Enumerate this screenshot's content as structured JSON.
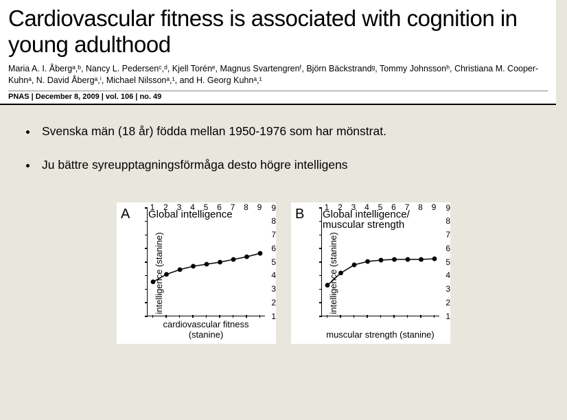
{
  "header": {
    "title": "Cardiovascular fitness is associated with cognition in young adulthood",
    "authors_html": "Maria A. I. Åbergᵃ,ᵇ, Nancy L. Pedersenᶜ,ᵈ, Kjell Torénᵉ, Magnus Svartengrenᶠ, Björn Bäckstrandᵍ, Tommy Johnssonʰ, Christiana M. Cooper-Kuhnᵃ, N. David Åbergᵃ,ⁱ, Michael Nilssonᵃ,¹, and H. Georg Kuhnᵃ,¹",
    "meta": "PNAS  |  December 8, 2009  |  vol. 106  |  no. 49"
  },
  "bullets": [
    "Svenska män (18 år) födda mellan 1950-1976 som har mönstrat.",
    "Ju bättre syreupptagningsförmåga desto högre intelligens"
  ],
  "charts": {
    "y_label": "intelligence (stanine)",
    "y_min": 1,
    "y_max": 9,
    "y_ticks": [
      1,
      2,
      3,
      4,
      5,
      6,
      7,
      8,
      9
    ],
    "x_min": 1,
    "x_max": 9,
    "x_ticks": [
      1,
      2,
      3,
      4,
      5,
      6,
      7,
      8,
      9
    ],
    "line_color": "#000000",
    "marker_fill": "#000000",
    "marker_radius": 3.4,
    "line_width": 1.5,
    "title_fontsize": 15,
    "label_fontsize": 13,
    "tick_fontsize": 12,
    "background": "#ffffff",
    "panels": [
      {
        "letter": "A",
        "title": "Global intelligence",
        "x_label": "cardiovascular fitness (stanine)",
        "x": [
          1,
          2,
          3,
          4,
          5,
          6,
          7,
          8,
          9
        ],
        "y": [
          3.55,
          4.1,
          4.45,
          4.7,
          4.85,
          5.0,
          5.2,
          5.4,
          5.65
        ]
      },
      {
        "letter": "B",
        "title": "Global intelligence/\nmuscular strength",
        "x_label": "muscular strength (stanine)",
        "x": [
          1,
          2,
          3,
          4,
          5,
          6,
          7,
          8,
          9
        ],
        "y": [
          3.3,
          4.2,
          4.8,
          5.05,
          5.15,
          5.2,
          5.2,
          5.2,
          5.25
        ]
      }
    ]
  }
}
